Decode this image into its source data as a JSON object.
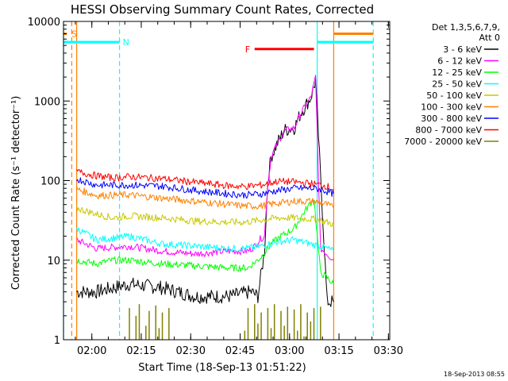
{
  "chart_data": {
    "type": "line",
    "title": "HESSI Observing Summary Count Rates, Corrected",
    "xlabel": "Start Time (18-Sep-13 01:51:22)",
    "ylabel": "Corrected Count Rate (s⁻¹ detector⁻¹)",
    "x_unit": "minutes",
    "xlim": [
      0,
      99
    ],
    "x_tick_labels": [
      "02:00",
      "02:15",
      "02:30",
      "02:45",
      "03:00",
      "03:15",
      "03:30"
    ],
    "x_ticks": [
      8.6,
      23.6,
      38.6,
      53.6,
      68.6,
      83.6,
      98.6
    ],
    "y_scale": "log",
    "ylim": [
      1,
      10000
    ],
    "y_tick_labels": [
      "1",
      "10",
      "100",
      "1000",
      "10000"
    ],
    "y_ticks": [
      1,
      10,
      100,
      1000,
      10000
    ],
    "legend": {
      "header_line1": "Det 1,3,5,6,7,9,",
      "header_line2": "Att 0",
      "placement": "top-right outside"
    },
    "timestamp": "18-Sep-2013 08:55",
    "series": [
      {
        "name": "3 - 6 keV",
        "color": "#000000",
        "x": [
          4,
          10,
          20,
          30,
          40,
          50,
          57,
          59,
          61,
          62,
          63,
          65,
          67,
          70,
          72,
          75,
          76,
          76.5,
          80,
          82
        ],
        "y": [
          4,
          4,
          5,
          4.5,
          3.5,
          3.5,
          4,
          3.5,
          13,
          100,
          200,
          300,
          430,
          460,
          700,
          1100,
          1500,
          1800,
          3,
          3
        ]
      },
      {
        "name": "6 - 12 keV",
        "color": "#ff00ff",
        "x": [
          4,
          10,
          20,
          30,
          40,
          50,
          56,
          58,
          60,
          61,
          62,
          63,
          65,
          67,
          70,
          72,
          75,
          76,
          76.5,
          78,
          80,
          82
        ],
        "y": [
          18,
          14,
          15,
          13,
          12,
          13,
          13,
          15,
          19,
          20,
          90,
          200,
          300,
          420,
          460,
          700,
          1100,
          1600,
          2000,
          14,
          12,
          10
        ]
      },
      {
        "name": "12 - 25 keV",
        "color": "#00ff00",
        "x": [
          4,
          10,
          15,
          20,
          30,
          40,
          50,
          56,
          60,
          63,
          66,
          70,
          73,
          76,
          77,
          78,
          80,
          82
        ],
        "y": [
          10,
          9,
          10,
          10,
          9,
          8.5,
          8,
          8,
          11,
          16,
          20,
          25,
          40,
          60,
          20,
          7,
          6,
          5
        ]
      },
      {
        "name": "25 - 50 keV",
        "color": "#00ffff",
        "x": [
          4,
          10,
          20,
          30,
          40,
          50,
          55,
          60,
          65,
          70,
          75,
          78,
          80,
          82
        ],
        "y": [
          25,
          18,
          20,
          16,
          15,
          14,
          14,
          15,
          17,
          18,
          16,
          15,
          14,
          13
        ]
      },
      {
        "name": "50 - 100 keV",
        "color": "#c8c800",
        "x": [
          4,
          10,
          15,
          20,
          30,
          40,
          50,
          55,
          60,
          65,
          70,
          75,
          78,
          80,
          82
        ],
        "y": [
          45,
          38,
          34,
          36,
          34,
          31,
          30,
          30,
          32,
          34,
          34,
          33,
          32,
          30,
          28
        ]
      },
      {
        "name": "100 - 300 keV",
        "color": "#ff8000",
        "x": [
          4,
          10,
          20,
          30,
          40,
          50,
          55,
          60,
          65,
          70,
          75,
          78,
          80,
          82
        ],
        "y": [
          78,
          65,
          66,
          60,
          55,
          50,
          48,
          48,
          52,
          55,
          55,
          53,
          50,
          45
        ]
      },
      {
        "name": "300 - 800 keV",
        "color": "#0000ff",
        "x": [
          4,
          10,
          20,
          30,
          40,
          50,
          55,
          60,
          65,
          70,
          75,
          78,
          80,
          82
        ],
        "y": [
          105,
          88,
          88,
          85,
          75,
          68,
          66,
          68,
          75,
          80,
          80,
          78,
          73,
          68
        ]
      },
      {
        "name": "800 - 7000 keV",
        "color": "#ff0000",
        "x": [
          4,
          10,
          15,
          20,
          30,
          40,
          50,
          55,
          60,
          65,
          70,
          75,
          78,
          80,
          82
        ],
        "y": [
          130,
          115,
          108,
          112,
          106,
          95,
          86,
          84,
          88,
          98,
          96,
          92,
          88,
          85,
          78
        ]
      },
      {
        "name": "7000 - 20000 keV",
        "color": "#808000",
        "x": [
          20,
          21,
          22,
          23,
          24,
          25,
          26,
          27,
          28,
          29,
          30,
          31,
          32,
          55,
          56,
          57,
          58,
          59,
          60,
          61,
          62,
          63,
          64,
          65,
          66,
          67,
          68,
          69,
          70,
          71,
          72,
          73,
          74,
          75,
          76,
          77,
          78
        ],
        "y": [
          2.5,
          1,
          2,
          2.8,
          1,
          1.5,
          2.3,
          1,
          2.7,
          1.4,
          2.2,
          1,
          2.5,
          1.3,
          2.5,
          1,
          2.8,
          1.6,
          2.2,
          1,
          2.5,
          1.4,
          2.8,
          1,
          2.3,
          1.5,
          2.6,
          1,
          2.4,
          1.3,
          2.8,
          1.1,
          2.2,
          1.7,
          2.5,
          1,
          2.6
        ]
      }
    ],
    "annotations": [
      {
        "type": "bar",
        "label": "S",
        "color": "#ff8000",
        "x": [
          0,
          1
        ],
        "y": 7000
      },
      {
        "type": "bar",
        "label": "N",
        "color": "#00ffff",
        "x": [
          0,
          17
        ],
        "y": 5500
      },
      {
        "type": "bar",
        "label": "F",
        "color": "#ff0000",
        "x": [
          58,
          76
        ],
        "y": 4500
      },
      {
        "type": "bar",
        "label": "",
        "color": "#00ffff",
        "x": [
          77,
          94
        ],
        "y": 5500
      },
      {
        "type": "bar",
        "label": "",
        "color": "#ff8000",
        "x": [
          82,
          94
        ],
        "y": 7000
      }
    ],
    "vertical_lines": [
      {
        "x": 0,
        "color": "#00ffff",
        "style": "solid"
      },
      {
        "x": 2.5,
        "color": "#ff8000",
        "style": "dashed"
      },
      {
        "x": 4,
        "color": "#ff8000",
        "style": "solid"
      },
      {
        "x": 17,
        "color": "#00ffff",
        "style": "dashed"
      },
      {
        "x": 77,
        "color": "#00ffff",
        "style": "solid"
      },
      {
        "x": 82,
        "color": "#ff8000",
        "style": "solid"
      },
      {
        "x": 94,
        "color": "#00ffff",
        "style": "dashed"
      }
    ]
  }
}
